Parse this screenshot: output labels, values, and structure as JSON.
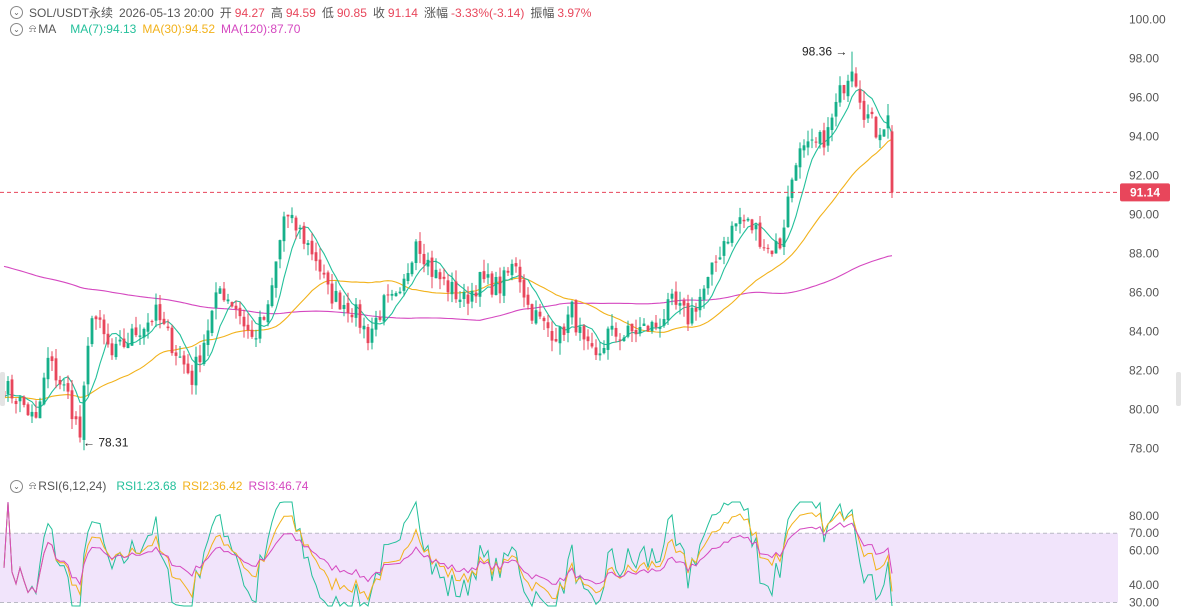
{
  "header": {
    "symbol": "SOL/USDT永续",
    "datetime": "2026-05-13 20:00",
    "open_label": "开",
    "open": "94.27",
    "high_label": "高",
    "high": "94.59",
    "low_label": "低",
    "low": "90.85",
    "close_label": "收",
    "close": "91.14",
    "change_label": "涨幅",
    "change": "-3.33%(-3.14)",
    "amplitude_label": "振幅",
    "amplitude": "3.97%"
  },
  "ma_legend": {
    "title": "MA",
    "ma7": "MA(7):94.13",
    "ma30": "MA(30):94.52",
    "ma120": "MA(120):87.70"
  },
  "rsi_legend": {
    "title": "RSI(6,12,24)",
    "rsi1": "RSI1:23.68",
    "rsi2": "RSI2:36.42",
    "rsi3": "RSI3:46.74"
  },
  "colors": {
    "up": "#16b08a",
    "down": "#e8465b",
    "ma7": "#24c09b",
    "ma30": "#f2b21b",
    "ma120": "#d548c0",
    "rsi1": "#24c09b",
    "rsi2": "#f2b21b",
    "rsi3": "#d548c0",
    "rsi_band": "#f1e4fb",
    "price_line": "#e8465b"
  },
  "chart_data": [
    {
      "type": "candlestick",
      "ylim": [
        77,
        100.6
      ],
      "y_ticks": [
        "100.00",
        "98.00",
        "96.00",
        "94.00",
        "92.00",
        "90.00",
        "88.00",
        "86.00",
        "84.00",
        "82.00",
        "80.00",
        "78.00"
      ],
      "y_tick_values": [
        100,
        98,
        96,
        94,
        92,
        90,
        88,
        86,
        84,
        82,
        80,
        78
      ],
      "current_price": 91.14,
      "current_price_label": "91.14",
      "annotations": [
        {
          "label": "98.36",
          "value": 98.36,
          "candle": 212,
          "side": "left"
        },
        {
          "label": "78.31",
          "value": 78.31,
          "candle": 19,
          "side": "right"
        }
      ],
      "anchors": [
        [
          0,
          81.2
        ],
        [
          5,
          80.2
        ],
        [
          8,
          79.3
        ],
        [
          11,
          82.5
        ],
        [
          16,
          80.7
        ],
        [
          19,
          78.6
        ],
        [
          22,
          85.1
        ],
        [
          27,
          82.7
        ],
        [
          33,
          84.0
        ],
        [
          38,
          84.9
        ],
        [
          43,
          83.0
        ],
        [
          47,
          81.6
        ],
        [
          54,
          86.2
        ],
        [
          58,
          85.3
        ],
        [
          62,
          83.6
        ],
        [
          66,
          85.0
        ],
        [
          70,
          89.9
        ],
        [
          74,
          89.1
        ],
        [
          78,
          87.8
        ],
        [
          81,
          86.0
        ],
        [
          87,
          85.2
        ],
        [
          91,
          83.8
        ],
        [
          95,
          85.4
        ],
        [
          99,
          85.6
        ],
        [
          103,
          88.9
        ],
        [
          107,
          87.1
        ],
        [
          111,
          86.3
        ],
        [
          115,
          85.6
        ],
        [
          119,
          86.6
        ],
        [
          124,
          86.3
        ],
        [
          128,
          87.6
        ],
        [
          131,
          85.3
        ],
        [
          135,
          84.3
        ],
        [
          139,
          83.8
        ],
        [
          142,
          85.1
        ],
        [
          145,
          83.2
        ],
        [
          148,
          82.5
        ],
        [
          151,
          83.9
        ],
        [
          155,
          83.8
        ],
        [
          159,
          84.1
        ],
        [
          163,
          84.3
        ],
        [
          167,
          85.4
        ],
        [
          171,
          84.7
        ],
        [
          176,
          86.5
        ],
        [
          180,
          88.7
        ],
        [
          184,
          89.8
        ],
        [
          188,
          89.2
        ],
        [
          191,
          88.2
        ],
        [
          194,
          88.5
        ],
        [
          198,
          93.0
        ],
        [
          203,
          93.5
        ],
        [
          206,
          94.2
        ],
        [
          209,
          96.2
        ],
        [
          212,
          97.8
        ],
        [
          215,
          95.4
        ],
        [
          218,
          94.3
        ],
        [
          221,
          94.9
        ],
        [
          222,
          94.27
        ]
      ],
      "last_candle": {
        "o": 94.27,
        "h": 94.59,
        "l": 90.85,
        "c": 91.14
      }
    },
    {
      "type": "line",
      "title": "RSI(6,12,24)",
      "ylim": [
        28,
        88
      ],
      "y_ticks": [
        "80.00",
        "70.00",
        "60.00",
        "40.00",
        "30.00"
      ],
      "y_tick_values": [
        80,
        70,
        60,
        40,
        30
      ],
      "band": [
        30,
        70
      ],
      "series": [
        {
          "name": "RSI1",
          "last": 23.68
        },
        {
          "name": "RSI2",
          "last": 36.42
        },
        {
          "name": "RSI3",
          "last": 46.74
        }
      ]
    }
  ]
}
